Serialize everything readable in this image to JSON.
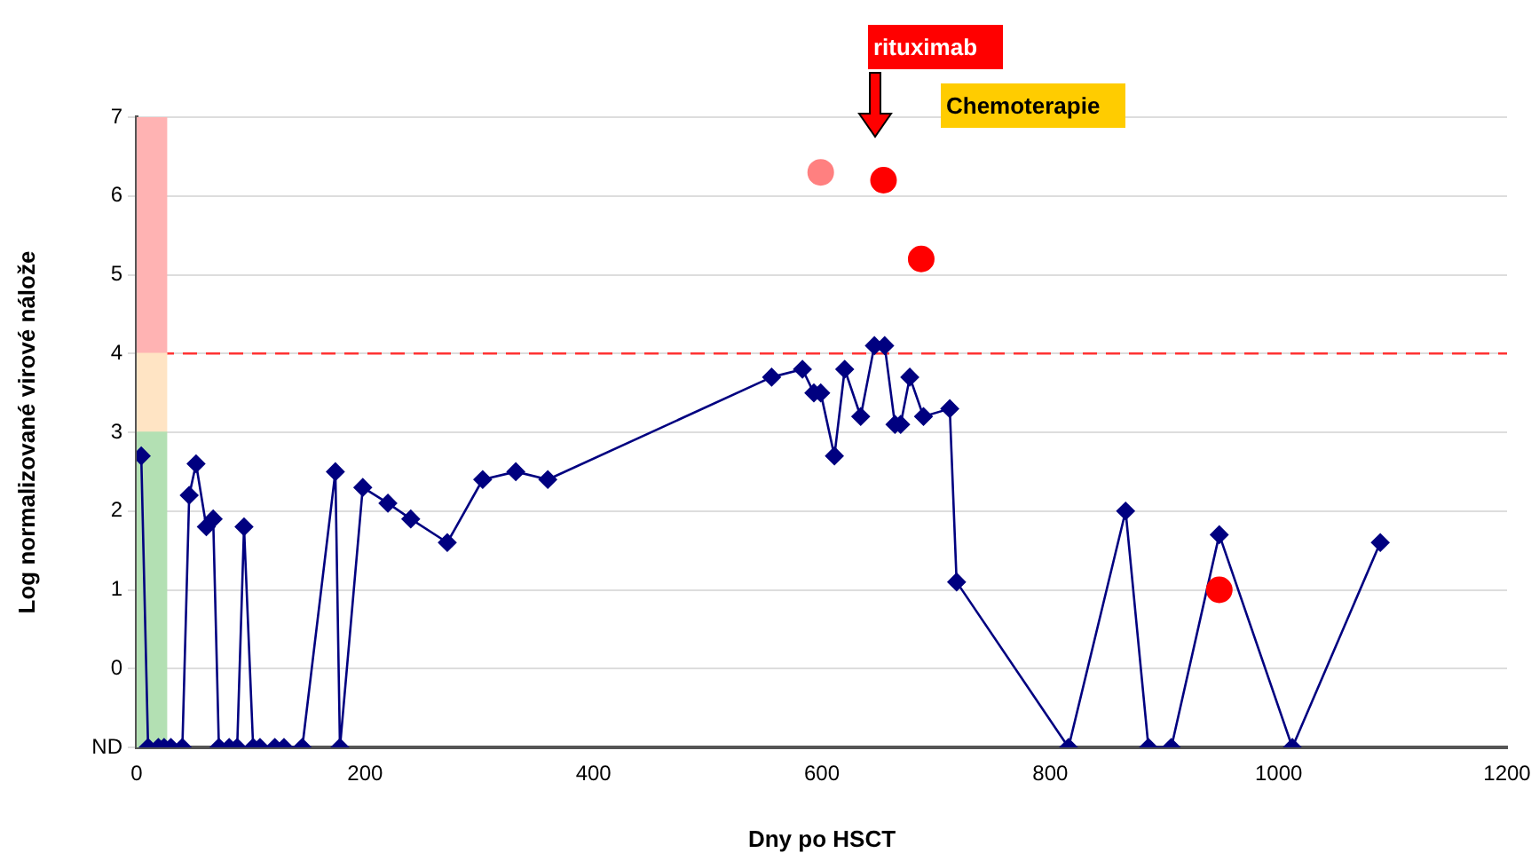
{
  "chart_data": {
    "type": "line",
    "xlabel": "Dny po HSCT",
    "ylabel": "Log normalizované virové nálože",
    "xlim": [
      0,
      1200
    ],
    "xticks": [
      0,
      200,
      400,
      600,
      800,
      1000,
      1200
    ],
    "ylim": [
      -1,
      7
    ],
    "yticks": [
      {
        "value": -1,
        "label": "ND"
      },
      0,
      1,
      2,
      3,
      4,
      5,
      6,
      7
    ],
    "grid": "y",
    "legend": false,
    "series": [
      {
        "type": "bar",
        "color": "#b3e0b3",
        "x": [
          13
        ],
        "base": [
          -1
        ],
        "values": [
          4
        ]
      },
      {
        "type": "bar",
        "color": "#ffe4c4",
        "x": [
          13
        ],
        "base": [
          3
        ],
        "values": [
          1
        ]
      },
      {
        "type": "bar",
        "color": "#ffb3b3",
        "x": [
          13
        ],
        "base": [
          4
        ],
        "values": [
          3
        ]
      },
      {
        "color": "#000080",
        "marker": "diamond",
        "x": [
          4,
          10,
          19,
          24,
          30,
          40,
          46,
          52,
          61,
          67,
          72,
          81,
          88,
          94,
          102,
          108,
          121,
          129,
          145,
          174,
          178,
          198,
          220,
          240,
          272,
          303,
          332,
          360,
          556,
          583,
          593,
          599,
          611,
          620,
          634,
          646,
          655,
          664,
          669,
          677,
          689,
          712,
          718,
          816,
          866,
          886,
          906,
          948,
          1012,
          1089
        ],
        "values": [
          2.7,
          -1,
          -1,
          -1,
          -1,
          -1,
          2.2,
          2.6,
          1.8,
          1.9,
          -1,
          -1,
          -1,
          1.8,
          -1,
          -1,
          -1,
          -1,
          -1,
          2.5,
          -1,
          2.3,
          2.1,
          1.9,
          1.6,
          2.4,
          2.5,
          2.4,
          3.7,
          3.8,
          3.5,
          3.5,
          2.7,
          3.8,
          3.2,
          4.1,
          4.1,
          3.1,
          3.1,
          3.7,
          3.2,
          3.3,
          1.1,
          -1,
          2,
          -1,
          -1,
          1.7,
          -1,
          1.6
        ]
      },
      {
        "type": "scatter",
        "marker": "circle",
        "colors": [
          "#ff8080",
          "#ff0000",
          "#ff0000",
          "#ff0000"
        ],
        "x": [
          599,
          654,
          687,
          948
        ],
        "values": [
          6.3,
          6.2,
          5.2,
          1
        ]
      }
    ],
    "ref_lines": [
      {
        "axis": "y",
        "value": 4,
        "color": "#ff3333",
        "line_style": "dashed"
      }
    ],
    "annotations": [
      "rituximab",
      "Chemoterapie"
    ]
  }
}
